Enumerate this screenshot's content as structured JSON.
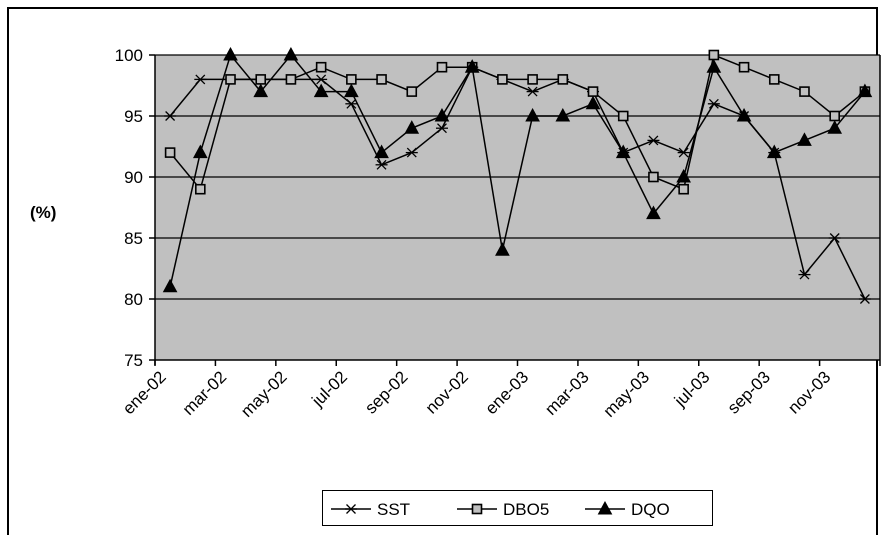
{
  "chart_data": {
    "type": "line",
    "title": "",
    "xlabel": "",
    "ylabel": "(%)",
    "ylim": [
      75,
      100
    ],
    "yticks": [
      75,
      80,
      85,
      90,
      95,
      100
    ],
    "grid": true,
    "legend": "bottom-center",
    "plot_background": "#c0c0c0",
    "x_tick_labels": [
      "ene-02",
      "mar-02",
      "may-02",
      "jul-02",
      "sep-02",
      "nov-02",
      "ene-03",
      "mar-03",
      "may-03",
      "jul-03",
      "sep-03",
      "nov-03"
    ],
    "x": [
      "ene-02",
      "feb-02",
      "mar-02",
      "abr-02",
      "may-02",
      "jun-02",
      "jul-02",
      "ago-02",
      "sep-02",
      "oct-02",
      "nov-02",
      "dic-02",
      "ene-03",
      "feb-03",
      "mar-03",
      "abr-03",
      "may-03",
      "jun-03",
      "jul-03",
      "ago-03",
      "sep-03",
      "oct-03",
      "nov-03",
      "dic-03"
    ],
    "series": [
      {
        "name": "SST",
        "marker": "star",
        "values": [
          95,
          98,
          98,
          98,
          98,
          98,
          96,
          91,
          92,
          94,
          99,
          98,
          97,
          98,
          97,
          92,
          93,
          92,
          96,
          95,
          92,
          82,
          85,
          80
        ]
      },
      {
        "name": "DBO5",
        "marker": "square",
        "values": [
          92,
          89,
          98,
          98,
          98,
          99,
          98,
          98,
          97,
          99,
          99,
          98,
          98,
          98,
          97,
          95,
          90,
          89,
          100,
          99,
          98,
          97,
          95,
          97
        ]
      },
      {
        "name": "DQO",
        "marker": "triangle",
        "values": [
          81,
          92,
          100,
          97,
          100,
          97,
          97,
          92,
          94,
          95,
          99,
          84,
          95,
          95,
          96,
          92,
          87,
          90,
          99,
          95,
          92,
          93,
          94,
          97
        ]
      }
    ]
  }
}
